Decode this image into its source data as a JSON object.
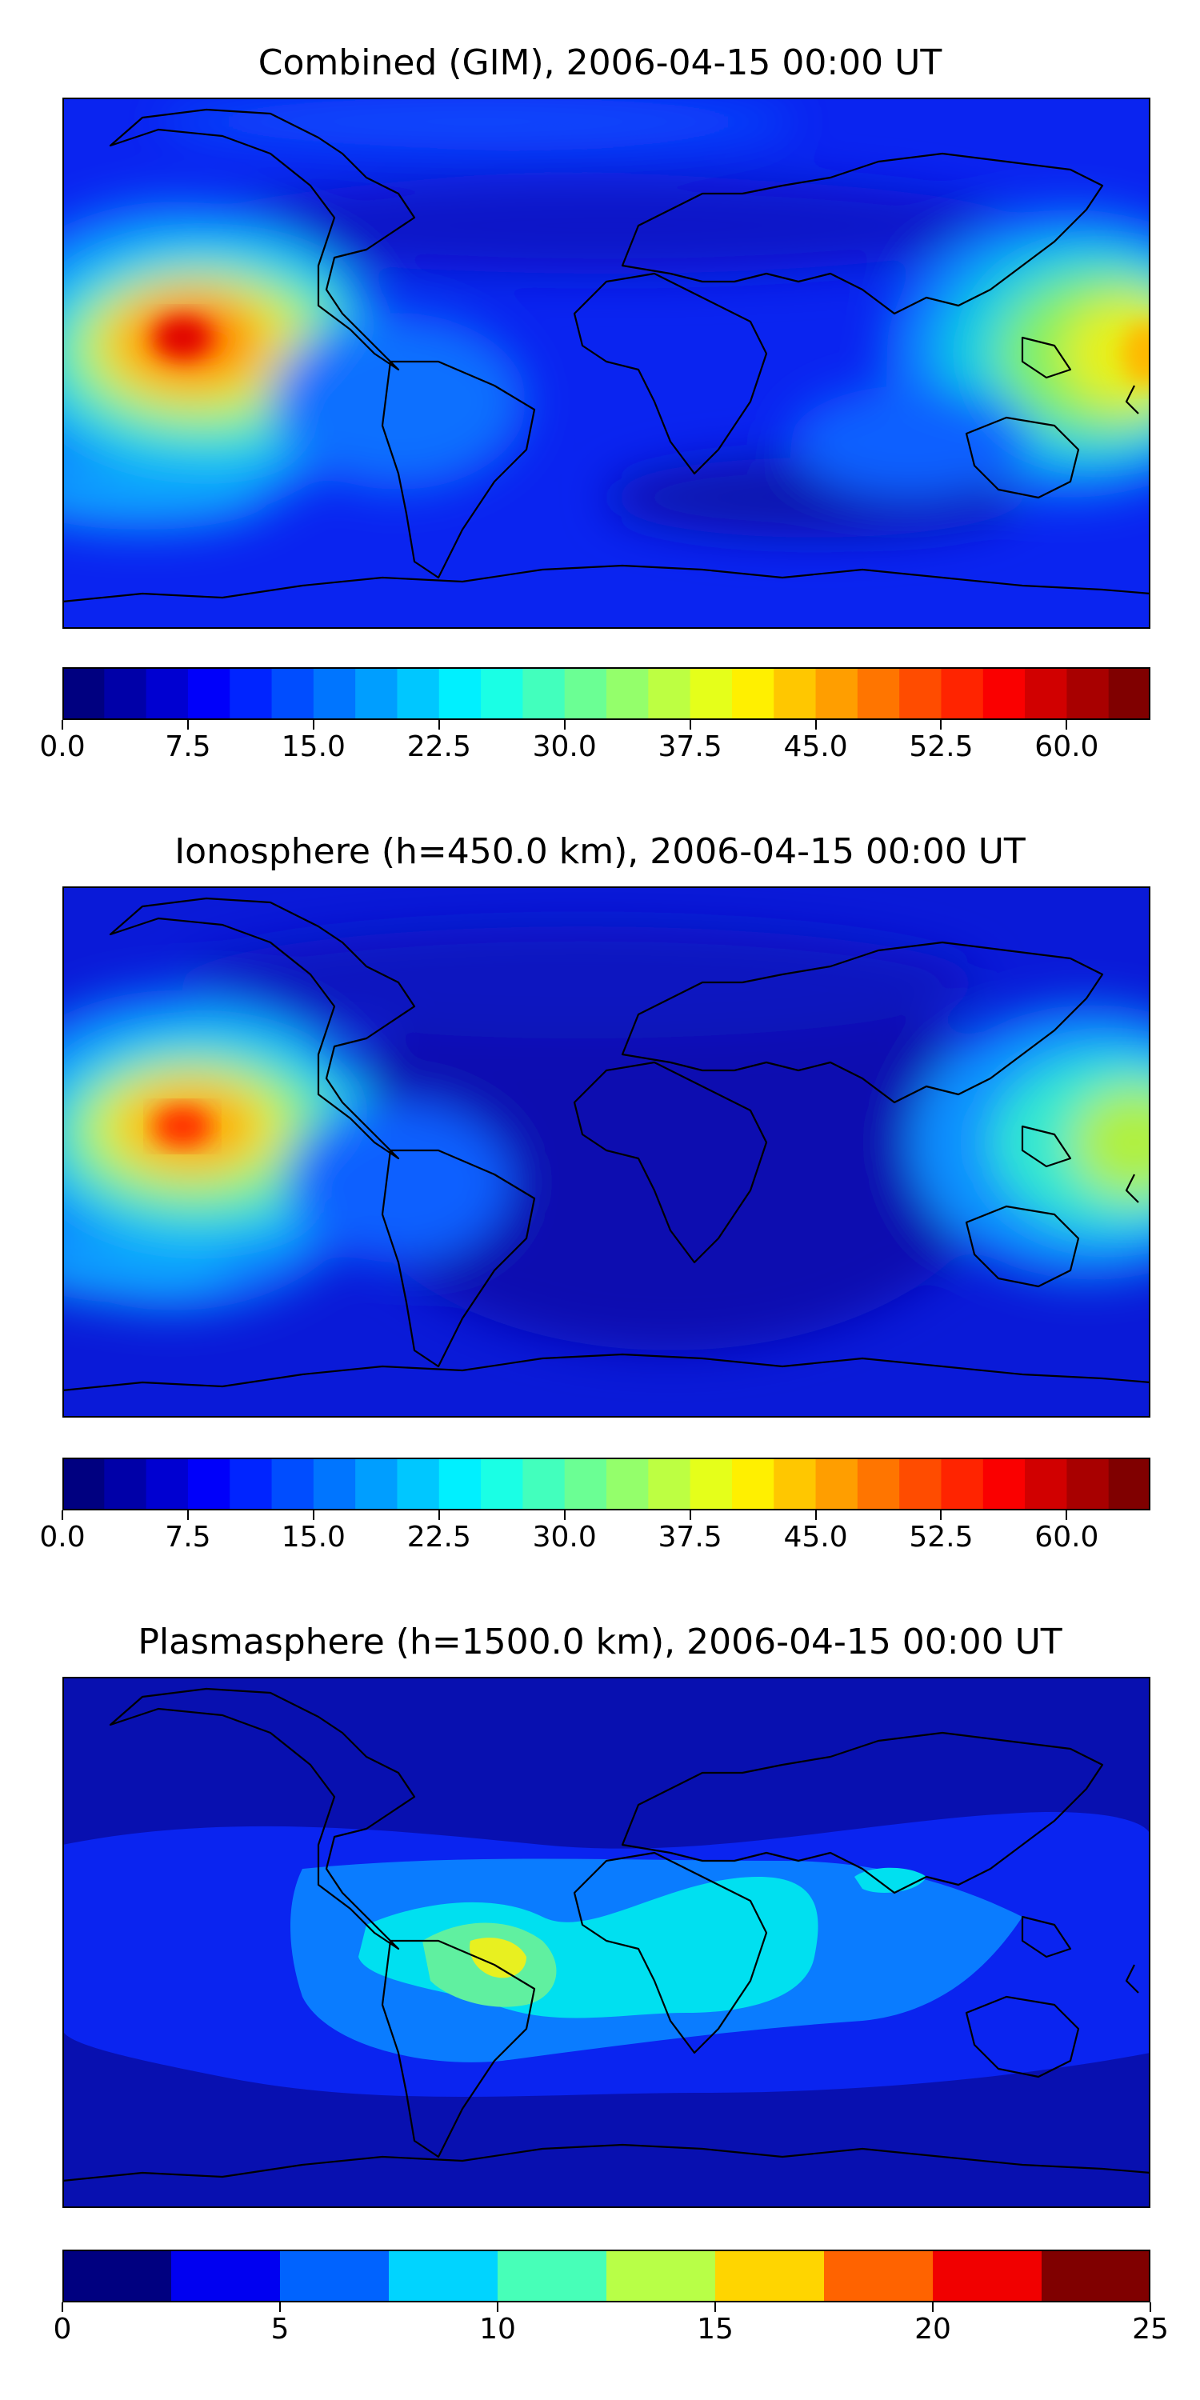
{
  "panels": [
    {
      "title": "Combined (GIM), 2006-04-15 00:00 UT",
      "colorbar": {
        "min": 0,
        "max": 65,
        "step": 2.5,
        "ticks": [
          "0.0",
          "7.5",
          "15.0",
          "22.5",
          "30.0",
          "37.5",
          "45.0",
          "52.5",
          "60.0"
        ],
        "tick_values": [
          0,
          7.5,
          15,
          22.5,
          30,
          37.5,
          45,
          52.5,
          60
        ]
      }
    },
    {
      "title": "Ionosphere  (h=450.0 km), 2006-04-15 00:00 UT",
      "colorbar": {
        "min": 0,
        "max": 65,
        "step": 2.5,
        "ticks": [
          "0.0",
          "7.5",
          "15.0",
          "22.5",
          "30.0",
          "37.5",
          "45.0",
          "52.5",
          "60.0"
        ],
        "tick_values": [
          0,
          7.5,
          15,
          22.5,
          30,
          37.5,
          45,
          52.5,
          60
        ]
      }
    },
    {
      "title": "Plasmasphere (h=1500.0 km), 2006-04-15 00:00 UT",
      "colorbar": {
        "min": 0,
        "max": 25,
        "step": 2.5,
        "ticks": [
          "0",
          "5",
          "10",
          "15",
          "20",
          "25"
        ],
        "tick_values": [
          0,
          5,
          10,
          15,
          20,
          25
        ]
      }
    }
  ],
  "colormap": "jet"
}
